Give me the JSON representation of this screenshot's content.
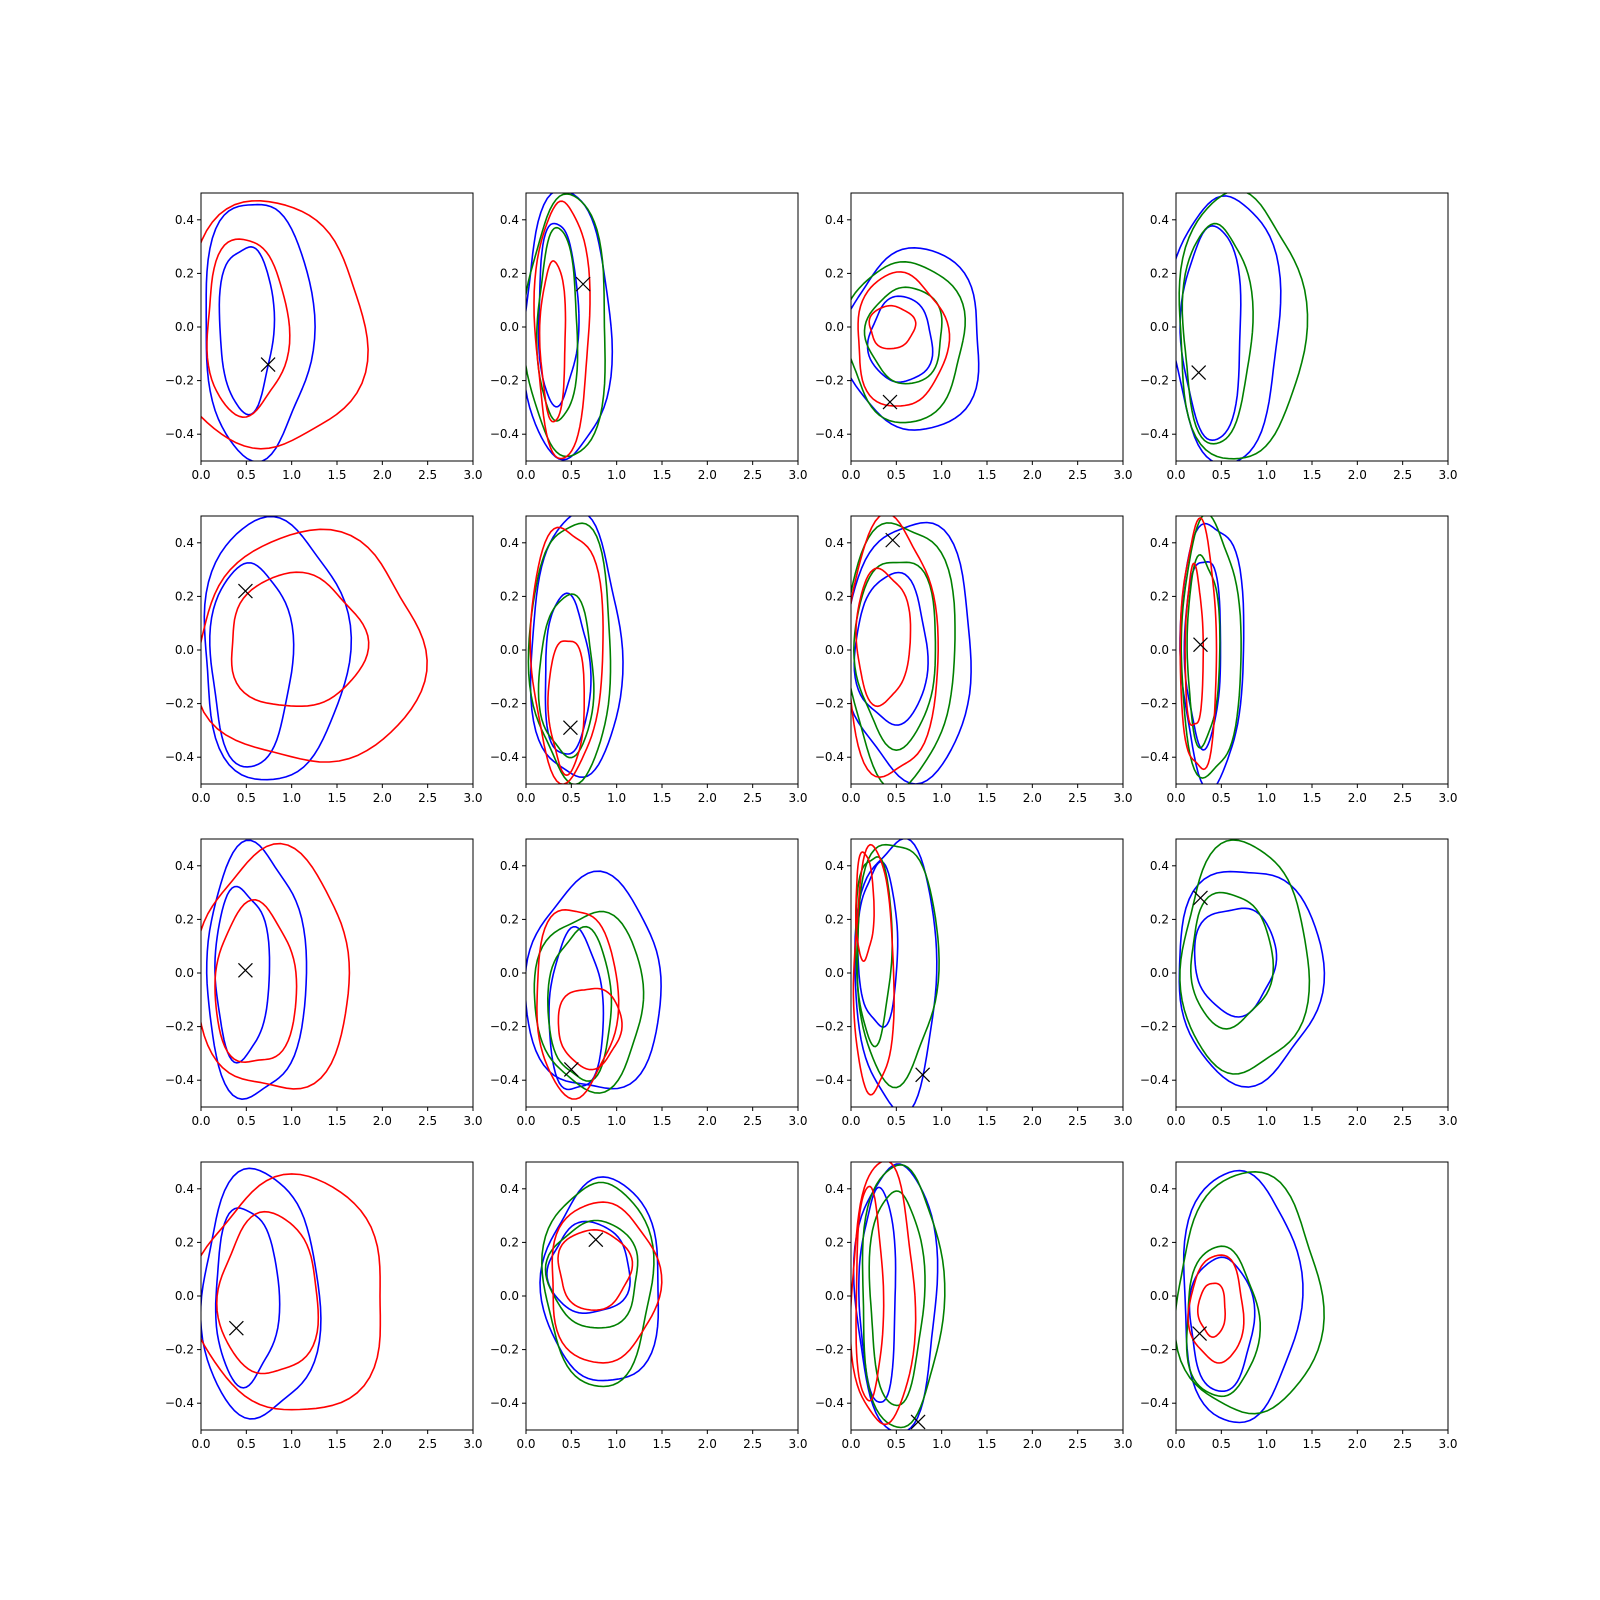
{
  "chart_data": {
    "type": "contour",
    "grid": false,
    "rows": 4,
    "cols": 4,
    "xlim": [
      0.0,
      3.0
    ],
    "ylim": [
      -0.5,
      0.5
    ],
    "xticks": [
      "0.0",
      "0.5",
      "1.0",
      "1.5",
      "2.0",
      "2.5",
      "3.0"
    ],
    "yticks": [
      "−0.4",
      "−0.2",
      "0.0",
      "0.2",
      "0.4"
    ],
    "colors": {
      "blue": "#0000ff",
      "red": "#ff0000",
      "green": "#008000",
      "marker": "#000000"
    },
    "panels": [
      {
        "marker": [
          0.74,
          -0.14
        ],
        "contours": [
          {
            "color": "blue",
            "cx": 0.5,
            "cy": 0.0,
            "rx": 0.3,
            "ry": 0.31
          },
          {
            "color": "blue",
            "cx": 0.62,
            "cy": 0.0,
            "rx": 0.6,
            "ry": 0.48
          },
          {
            "color": "red",
            "cx": 0.5,
            "cy": 0.0,
            "rx": 0.45,
            "ry": 0.33
          },
          {
            "color": "red",
            "cx": 0.75,
            "cy": 0.0,
            "rx": 1.05,
            "ry": 0.46
          }
        ]
      },
      {
        "marker": [
          0.63,
          0.16
        ],
        "contours": [
          {
            "color": "blue",
            "cx": 0.35,
            "cy": 0.05,
            "rx": 0.22,
            "ry": 0.34
          },
          {
            "color": "blue",
            "cx": 0.45,
            "cy": 0.0,
            "rx": 0.48,
            "ry": 0.5
          },
          {
            "color": "green",
            "cx": 0.35,
            "cy": 0.0,
            "rx": 0.22,
            "ry": 0.36
          },
          {
            "color": "green",
            "cx": 0.45,
            "cy": 0.0,
            "rx": 0.45,
            "ry": 0.49
          },
          {
            "color": "red",
            "cx": 0.3,
            "cy": -0.05,
            "rx": 0.14,
            "ry": 0.3
          },
          {
            "color": "red",
            "cx": 0.4,
            "cy": 0.0,
            "rx": 0.3,
            "ry": 0.48
          }
        ]
      },
      {
        "marker": [
          0.43,
          -0.28
        ],
        "contours": [
          {
            "color": "blue",
            "cx": 0.55,
            "cy": -0.05,
            "rx": 0.35,
            "ry": 0.16
          },
          {
            "color": "blue",
            "cx": 0.7,
            "cy": -0.05,
            "rx": 0.75,
            "ry": 0.34
          },
          {
            "color": "green",
            "cx": 0.6,
            "cy": -0.03,
            "rx": 0.42,
            "ry": 0.18
          },
          {
            "color": "green",
            "cx": 0.6,
            "cy": -0.05,
            "rx": 0.65,
            "ry": 0.3
          },
          {
            "color": "red",
            "cx": 0.45,
            "cy": 0.0,
            "rx": 0.25,
            "ry": 0.08
          },
          {
            "color": "red",
            "cx": 0.55,
            "cy": -0.05,
            "rx": 0.5,
            "ry": 0.25
          }
        ]
      },
      {
        "marker": [
          0.25,
          -0.17
        ],
        "contours": [
          {
            "color": "blue",
            "cx": 0.4,
            "cy": -0.02,
            "rx": 0.33,
            "ry": 0.4
          },
          {
            "color": "blue",
            "cx": 0.55,
            "cy": 0.0,
            "rx": 0.6,
            "ry": 0.5
          },
          {
            "color": "green",
            "cx": 0.45,
            "cy": -0.02,
            "rx": 0.38,
            "ry": 0.41
          },
          {
            "color": "green",
            "cx": 0.7,
            "cy": 0.0,
            "rx": 0.7,
            "ry": 0.5
          }
        ]
      },
      {
        "marker": [
          0.49,
          0.22
        ],
        "contours": [
          {
            "color": "blue",
            "cx": 0.55,
            "cy": -0.05,
            "rx": 0.45,
            "ry": 0.38
          },
          {
            "color": "blue",
            "cx": 0.8,
            "cy": 0.0,
            "rx": 0.8,
            "ry": 0.49
          },
          {
            "color": "red",
            "cx": 1.05,
            "cy": 0.03,
            "rx": 0.75,
            "ry": 0.25
          },
          {
            "color": "red",
            "cx": 1.2,
            "cy": 0.0,
            "rx": 1.25,
            "ry": 0.43
          }
        ]
      },
      {
        "marker": [
          0.49,
          -0.29
        ],
        "contours": [
          {
            "color": "blue",
            "cx": 0.45,
            "cy": -0.1,
            "rx": 0.25,
            "ry": 0.3
          },
          {
            "color": "blue",
            "cx": 0.55,
            "cy": 0.0,
            "rx": 0.5,
            "ry": 0.49
          },
          {
            "color": "green",
            "cx": 0.45,
            "cy": -0.1,
            "rx": 0.3,
            "ry": 0.3
          },
          {
            "color": "green",
            "cx": 0.5,
            "cy": 0.0,
            "rx": 0.45,
            "ry": 0.48
          },
          {
            "color": "red",
            "cx": 0.45,
            "cy": -0.2,
            "rx": 0.2,
            "ry": 0.25
          },
          {
            "color": "red",
            "cx": 0.45,
            "cy": 0.0,
            "rx": 0.4,
            "ry": 0.47
          }
        ]
      },
      {
        "marker": [
          0.46,
          0.41
        ],
        "contours": [
          {
            "color": "blue",
            "cx": 0.45,
            "cy": 0.0,
            "rx": 0.4,
            "ry": 0.28
          },
          {
            "color": "blue",
            "cx": 0.65,
            "cy": 0.0,
            "rx": 0.7,
            "ry": 0.48
          },
          {
            "color": "green",
            "cx": 0.5,
            "cy": 0.0,
            "rx": 0.45,
            "ry": 0.35
          },
          {
            "color": "green",
            "cx": 0.55,
            "cy": 0.0,
            "rx": 0.6,
            "ry": 0.49
          },
          {
            "color": "red",
            "cx": 0.35,
            "cy": 0.05,
            "rx": 0.3,
            "ry": 0.25
          },
          {
            "color": "red",
            "cx": 0.45,
            "cy": 0.0,
            "rx": 0.5,
            "ry": 0.48
          }
        ]
      },
      {
        "marker": [
          0.27,
          0.02
        ],
        "contours": [
          {
            "color": "blue",
            "cx": 0.3,
            "cy": 0.0,
            "rx": 0.2,
            "ry": 0.35
          },
          {
            "color": "blue",
            "cx": 0.4,
            "cy": 0.0,
            "rx": 0.35,
            "ry": 0.49
          },
          {
            "color": "green",
            "cx": 0.3,
            "cy": 0.0,
            "rx": 0.18,
            "ry": 0.35
          },
          {
            "color": "green",
            "cx": 0.38,
            "cy": 0.0,
            "rx": 0.33,
            "ry": 0.48
          },
          {
            "color": "red",
            "cx": 0.2,
            "cy": 0.0,
            "rx": 0.1,
            "ry": 0.3
          },
          {
            "color": "red",
            "cx": 0.25,
            "cy": 0.0,
            "rx": 0.2,
            "ry": 0.46
          }
        ]
      },
      {
        "marker": [
          0.49,
          0.01
        ],
        "contours": [
          {
            "color": "blue",
            "cx": 0.45,
            "cy": 0.0,
            "rx": 0.3,
            "ry": 0.32
          },
          {
            "color": "blue",
            "cx": 0.6,
            "cy": 0.0,
            "rx": 0.55,
            "ry": 0.47
          },
          {
            "color": "red",
            "cx": 0.6,
            "cy": -0.05,
            "rx": 0.45,
            "ry": 0.3
          },
          {
            "color": "red",
            "cx": 0.8,
            "cy": 0.0,
            "rx": 0.85,
            "ry": 0.45
          }
        ]
      },
      {
        "marker": [
          0.5,
          -0.36
        ],
        "contours": [
          {
            "color": "blue",
            "cx": 0.55,
            "cy": -0.15,
            "rx": 0.3,
            "ry": 0.3
          },
          {
            "color": "blue",
            "cx": 0.75,
            "cy": -0.05,
            "rx": 0.75,
            "ry": 0.4
          },
          {
            "color": "green",
            "cx": 0.6,
            "cy": -0.12,
            "rx": 0.35,
            "ry": 0.28
          },
          {
            "color": "green",
            "cx": 0.7,
            "cy": -0.1,
            "rx": 0.6,
            "ry": 0.33
          },
          {
            "color": "red",
            "cx": 0.7,
            "cy": -0.2,
            "rx": 0.35,
            "ry": 0.15
          },
          {
            "color": "red",
            "cx": 0.55,
            "cy": -0.1,
            "rx": 0.45,
            "ry": 0.35
          }
        ]
      },
      {
        "marker": [
          0.79,
          -0.38
        ],
        "contours": [
          {
            "color": "blue",
            "cx": 0.3,
            "cy": 0.1,
            "rx": 0.22,
            "ry": 0.3
          },
          {
            "color": "blue",
            "cx": 0.5,
            "cy": 0.0,
            "rx": 0.45,
            "ry": 0.5
          },
          {
            "color": "green",
            "cx": 0.25,
            "cy": 0.1,
            "rx": 0.2,
            "ry": 0.35
          },
          {
            "color": "green",
            "cx": 0.5,
            "cy": 0.05,
            "rx": 0.45,
            "ry": 0.45
          },
          {
            "color": "red",
            "cx": 0.15,
            "cy": 0.25,
            "rx": 0.1,
            "ry": 0.2
          },
          {
            "color": "red",
            "cx": 0.25,
            "cy": 0.0,
            "rx": 0.22,
            "ry": 0.46
          }
        ]
      },
      {
        "marker": [
          0.27,
          0.28
        ],
        "contours": [
          {
            "color": "blue",
            "cx": 0.65,
            "cy": 0.05,
            "rx": 0.45,
            "ry": 0.2
          },
          {
            "color": "blue",
            "cx": 0.8,
            "cy": 0.0,
            "rx": 0.8,
            "ry": 0.4
          },
          {
            "color": "green",
            "cx": 0.6,
            "cy": 0.05,
            "rx": 0.45,
            "ry": 0.25
          },
          {
            "color": "green",
            "cx": 0.75,
            "cy": 0.05,
            "rx": 0.7,
            "ry": 0.43
          }
        ]
      },
      {
        "marker": [
          0.39,
          -0.12
        ],
        "contours": [
          {
            "color": "blue",
            "cx": 0.5,
            "cy": 0.0,
            "rx": 0.35,
            "ry": 0.33
          },
          {
            "color": "blue",
            "cx": 0.65,
            "cy": 0.0,
            "rx": 0.65,
            "ry": 0.46
          },
          {
            "color": "red",
            "cx": 0.75,
            "cy": 0.0,
            "rx": 0.55,
            "ry": 0.3
          },
          {
            "color": "red",
            "cx": 1.0,
            "cy": 0.0,
            "rx": 1.05,
            "ry": 0.44
          }
        ]
      },
      {
        "marker": [
          0.77,
          0.21
        ],
        "contours": [
          {
            "color": "blue",
            "cx": 0.7,
            "cy": 0.1,
            "rx": 0.45,
            "ry": 0.17
          },
          {
            "color": "blue",
            "cx": 0.85,
            "cy": 0.05,
            "rx": 0.65,
            "ry": 0.38
          },
          {
            "color": "green",
            "cx": 0.75,
            "cy": 0.08,
            "rx": 0.5,
            "ry": 0.2
          },
          {
            "color": "green",
            "cx": 0.8,
            "cy": 0.05,
            "rx": 0.6,
            "ry": 0.38
          },
          {
            "color": "red",
            "cx": 0.75,
            "cy": 0.1,
            "rx": 0.4,
            "ry": 0.15
          },
          {
            "color": "red",
            "cx": 0.85,
            "cy": 0.05,
            "rx": 0.6,
            "ry": 0.3
          }
        ]
      },
      {
        "marker": [
          0.74,
          -0.47
        ],
        "contours": [
          {
            "color": "blue",
            "cx": 0.3,
            "cy": 0.0,
            "rx": 0.2,
            "ry": 0.4
          },
          {
            "color": "blue",
            "cx": 0.5,
            "cy": 0.0,
            "rx": 0.45,
            "ry": 0.5
          },
          {
            "color": "green",
            "cx": 0.5,
            "cy": 0.0,
            "rx": 0.3,
            "ry": 0.4
          },
          {
            "color": "green",
            "cx": 0.55,
            "cy": 0.0,
            "rx": 0.45,
            "ry": 0.49
          },
          {
            "color": "red",
            "cx": 0.2,
            "cy": 0.0,
            "rx": 0.15,
            "ry": 0.4
          },
          {
            "color": "red",
            "cx": 0.35,
            "cy": 0.0,
            "rx": 0.35,
            "ry": 0.49
          }
        ]
      },
      {
        "marker": [
          0.26,
          -0.14
        ],
        "contours": [
          {
            "color": "blue",
            "cx": 0.5,
            "cy": -0.1,
            "rx": 0.35,
            "ry": 0.25
          },
          {
            "color": "blue",
            "cx": 0.7,
            "cy": 0.0,
            "rx": 0.65,
            "ry": 0.47
          },
          {
            "color": "green",
            "cx": 0.5,
            "cy": -0.1,
            "rx": 0.4,
            "ry": 0.28
          },
          {
            "color": "green",
            "cx": 0.8,
            "cy": 0.0,
            "rx": 0.8,
            "ry": 0.45
          },
          {
            "color": "red",
            "cx": 0.45,
            "cy": -0.05,
            "rx": 0.3,
            "ry": 0.2
          },
          {
            "color": "red",
            "cx": 0.4,
            "cy": -0.05,
            "rx": 0.15,
            "ry": 0.1
          }
        ]
      }
    ]
  }
}
